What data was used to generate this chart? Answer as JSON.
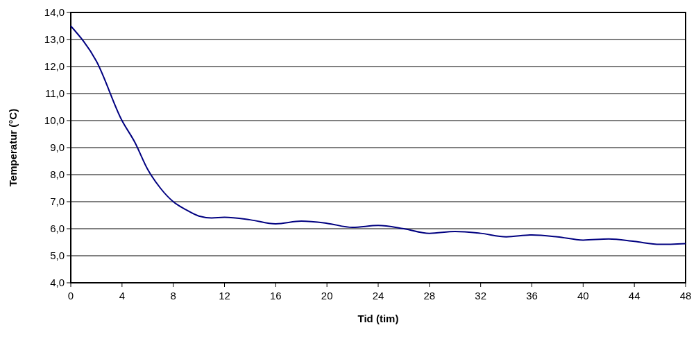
{
  "chart_data": {
    "type": "line",
    "xlabel": "Tid (tim)",
    "ylabel": "Temperatur (°C)",
    "x": [
      0,
      2,
      4,
      5,
      6,
      7,
      8,
      9,
      10,
      11,
      12,
      14,
      16,
      18,
      20,
      22,
      24,
      26,
      28,
      30,
      32,
      34,
      36,
      38,
      40,
      42,
      44,
      46,
      48
    ],
    "series": [
      {
        "color": "#000080",
        "values": [
          13.5,
          12.2,
          10.0,
          9.2,
          8.2,
          7.5,
          7.0,
          6.7,
          6.47,
          6.4,
          6.42,
          6.33,
          6.18,
          6.28,
          6.2,
          6.05,
          6.12,
          6.0,
          5.83,
          5.9,
          5.83,
          5.7,
          5.77,
          5.7,
          5.58,
          5.62,
          5.53,
          5.42,
          5.45
        ]
      }
    ],
    "xlim": [
      0,
      48
    ],
    "xticks": [
      0,
      4,
      8,
      12,
      16,
      20,
      24,
      28,
      32,
      36,
      40,
      44,
      48
    ],
    "ylim": [
      4,
      14
    ],
    "yticks": [
      {
        "value": 4,
        "label": "4,0"
      },
      {
        "value": 5,
        "label": "5,0"
      },
      {
        "value": 6,
        "label": "6,0"
      },
      {
        "value": 7,
        "label": "7,0"
      },
      {
        "value": 8,
        "label": "8,0"
      },
      {
        "value": 9,
        "label": "9,0"
      },
      {
        "value": 10,
        "label": "10,0"
      },
      {
        "value": 11,
        "label": "11,0"
      },
      {
        "value": 12,
        "label": "12,0"
      },
      {
        "value": 13,
        "label": "13,0"
      },
      {
        "value": 14,
        "label": "14,0"
      }
    ],
    "grid": "y",
    "marker": "none",
    "line_style": "solid"
  }
}
